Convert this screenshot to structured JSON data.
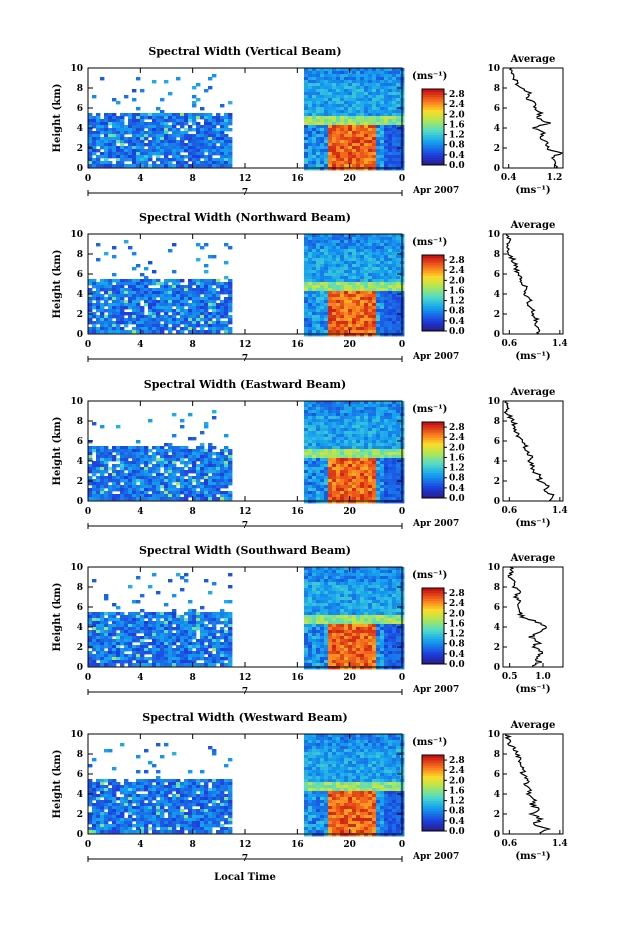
{
  "figure": {
    "xlabel": "Local Time",
    "ylabel": "Height (km)",
    "date_label": "Apr 2007",
    "day_label": "7",
    "colorbar_units": "(ms⁻¹)",
    "avg_title": "Average",
    "avg_units": "(ms⁻¹)"
  },
  "chart_data": [
    {
      "type": "heatmap",
      "title": "Spectral Width (Vertical Beam)",
      "xlabel": "",
      "ylabel": "Height (km)",
      "x_ticks": [
        "0",
        "4",
        "8",
        "12",
        "16",
        "20",
        "0"
      ],
      "y_ticks": [
        "0",
        "2",
        "4",
        "6",
        "8",
        "10"
      ],
      "xlim": [
        0,
        24
      ],
      "ylim": [
        0,
        10
      ],
      "colorbar": {
        "ticks": [
          "0.0",
          "0.4",
          "0.8",
          "1.2",
          "1.6",
          "2.0",
          "2.4",
          "2.8"
        ],
        "range": [
          0,
          3.0
        ]
      },
      "data_gap_hours": [
        11,
        16.5
      ],
      "average_profile": {
        "title": "Average",
        "xlabel": "(ms⁻¹)",
        "x_ticks": [
          "0.4",
          "1.2"
        ],
        "xlim": [
          0.3,
          1.35
        ],
        "y_ticks": [
          "0",
          "2",
          "4",
          "6",
          "8",
          "10"
        ],
        "points": [
          [
            1.2,
            0
          ],
          [
            1.25,
            0.5
          ],
          [
            1.15,
            1
          ],
          [
            1.3,
            1.5
          ],
          [
            1.05,
            2
          ],
          [
            1.1,
            2.5
          ],
          [
            0.95,
            3
          ],
          [
            1.0,
            3.5
          ],
          [
            0.85,
            4
          ],
          [
            1.1,
            4.5
          ],
          [
            0.9,
            5
          ],
          [
            0.95,
            5.5
          ],
          [
            0.85,
            6
          ],
          [
            0.9,
            6.5
          ],
          [
            0.7,
            7
          ],
          [
            0.75,
            7.5
          ],
          [
            0.6,
            8
          ],
          [
            0.55,
            8.5
          ],
          [
            0.5,
            9
          ],
          [
            0.45,
            9.5
          ],
          [
            0.45,
            10
          ]
        ]
      }
    },
    {
      "type": "heatmap",
      "title": "Spectral Width (Northward Beam)",
      "xlabel": "",
      "ylabel": "Height (km)",
      "x_ticks": [
        "0",
        "4",
        "8",
        "12",
        "16",
        "20",
        "0"
      ],
      "y_ticks": [
        "0",
        "2",
        "4",
        "6",
        "8",
        "10"
      ],
      "xlim": [
        0,
        24
      ],
      "ylim": [
        0,
        10
      ],
      "colorbar": {
        "ticks": [
          "0.0",
          "0.4",
          "0.8",
          "1.2",
          "1.6",
          "2.0",
          "2.4",
          "2.8"
        ],
        "range": [
          0,
          3.0
        ]
      },
      "data_gap_hours": [
        11,
        16.5
      ],
      "average_profile": {
        "title": "Average",
        "xlabel": "(ms⁻¹)",
        "x_ticks": [
          "0.6",
          "1.4"
        ],
        "xlim": [
          0.5,
          1.45
        ],
        "y_ticks": [
          "0",
          "2",
          "4",
          "6",
          "8",
          "10"
        ],
        "points": [
          [
            1.05,
            0
          ],
          [
            1.1,
            0.5
          ],
          [
            1.0,
            1
          ],
          [
            1.05,
            1.5
          ],
          [
            0.95,
            2
          ],
          [
            1.0,
            2.5
          ],
          [
            0.9,
            3
          ],
          [
            0.95,
            3.5
          ],
          [
            0.85,
            4
          ],
          [
            0.9,
            4.5
          ],
          [
            0.8,
            5
          ],
          [
            0.8,
            5.5
          ],
          [
            0.75,
            6
          ],
          [
            0.7,
            6.5
          ],
          [
            0.7,
            7
          ],
          [
            0.65,
            7.5
          ],
          [
            0.6,
            8
          ],
          [
            0.6,
            8.5
          ],
          [
            0.55,
            9
          ],
          [
            0.6,
            9.5
          ],
          [
            0.55,
            10
          ]
        ]
      }
    },
    {
      "type": "heatmap",
      "title": "Spectral Width (Eastward Beam)",
      "xlabel": "",
      "ylabel": "Height (km)",
      "x_ticks": [
        "0",
        "4",
        "8",
        "12",
        "16",
        "20",
        "0"
      ],
      "y_ticks": [
        "0",
        "2",
        "4",
        "6",
        "8",
        "10"
      ],
      "xlim": [
        0,
        24
      ],
      "ylim": [
        0,
        10
      ],
      "colorbar": {
        "ticks": [
          "0.0",
          "0.4",
          "0.8",
          "1.2",
          "1.6",
          "2.0",
          "2.4",
          "2.8"
        ],
        "range": [
          0,
          3.0
        ]
      },
      "data_gap_hours": [
        11,
        16.5
      ],
      "average_profile": {
        "title": "Average",
        "xlabel": "(ms⁻¹)",
        "x_ticks": [
          "0.6",
          "1.4"
        ],
        "xlim": [
          0.5,
          1.45
        ],
        "y_ticks": [
          "0",
          "2",
          "4",
          "6",
          "8",
          "10"
        ],
        "points": [
          [
            1.2,
            0
          ],
          [
            1.3,
            0.5
          ],
          [
            1.15,
            1
          ],
          [
            1.25,
            1.5
          ],
          [
            1.05,
            2
          ],
          [
            1.1,
            2.5
          ],
          [
            0.95,
            3
          ],
          [
            1.0,
            3.5
          ],
          [
            0.9,
            4
          ],
          [
            0.95,
            4.5
          ],
          [
            0.85,
            5
          ],
          [
            0.85,
            5.5
          ],
          [
            0.8,
            6
          ],
          [
            0.75,
            6.5
          ],
          [
            0.7,
            7
          ],
          [
            0.7,
            7.5
          ],
          [
            0.65,
            8
          ],
          [
            0.6,
            8.5
          ],
          [
            0.55,
            9
          ],
          [
            0.6,
            9.5
          ],
          [
            0.55,
            10
          ]
        ]
      }
    },
    {
      "type": "heatmap",
      "title": "Spectral Width (Southward Beam)",
      "xlabel": "",
      "ylabel": "Height (km)",
      "x_ticks": [
        "0",
        "4",
        "8",
        "12",
        "16",
        "20",
        "0"
      ],
      "y_ticks": [
        "0",
        "2",
        "4",
        "6",
        "8",
        "10"
      ],
      "xlim": [
        0,
        24
      ],
      "ylim": [
        0,
        10
      ],
      "colorbar": {
        "ticks": [
          "0.0",
          "0.4",
          "0.8",
          "1.2",
          "1.6",
          "2.0",
          "2.4",
          "2.8"
        ],
        "range": [
          0,
          3.0
        ]
      },
      "data_gap_hours": [
        11,
        16.5
      ],
      "average_profile": {
        "title": "Average",
        "xlabel": "(ms⁻¹)",
        "x_ticks": [
          "0.5",
          "1.0"
        ],
        "xlim": [
          0.4,
          1.3
        ],
        "y_ticks": [
          "0",
          "2",
          "4",
          "6",
          "8",
          "10"
        ],
        "points": [
          [
            0.85,
            0
          ],
          [
            0.95,
            0.5
          ],
          [
            0.9,
            1
          ],
          [
            1.0,
            1.5
          ],
          [
            0.85,
            2
          ],
          [
            0.95,
            2.5
          ],
          [
            0.8,
            3
          ],
          [
            0.95,
            3.5
          ],
          [
            1.05,
            4
          ],
          [
            0.9,
            4.5
          ],
          [
            0.7,
            5
          ],
          [
            0.65,
            5.5
          ],
          [
            0.6,
            6
          ],
          [
            0.65,
            6.5
          ],
          [
            0.6,
            7
          ],
          [
            0.65,
            7.5
          ],
          [
            0.55,
            8
          ],
          [
            0.6,
            8.5
          ],
          [
            0.5,
            9
          ],
          [
            0.55,
            9.5
          ],
          [
            0.5,
            10
          ]
        ]
      }
    },
    {
      "type": "heatmap",
      "title": "Spectral Width (Westward Beam)",
      "xlabel": "Local Time",
      "ylabel": "Height (km)",
      "x_ticks": [
        "0",
        "4",
        "8",
        "12",
        "16",
        "20",
        "0"
      ],
      "y_ticks": [
        "0",
        "2",
        "4",
        "6",
        "8",
        "10"
      ],
      "xlim": [
        0,
        24
      ],
      "ylim": [
        0,
        10
      ],
      "colorbar": {
        "ticks": [
          "0.0",
          "0.4",
          "0.8",
          "1.2",
          "1.6",
          "2.0",
          "2.4",
          "2.8"
        ],
        "range": [
          0,
          3.0
        ]
      },
      "data_gap_hours": [
        11,
        16.5
      ],
      "average_profile": {
        "title": "Average",
        "xlabel": "(ms⁻¹)",
        "x_ticks": [
          "0.6",
          "1.4"
        ],
        "xlim": [
          0.5,
          1.45
        ],
        "y_ticks": [
          "0",
          "2",
          "4",
          "6",
          "8",
          "10"
        ],
        "points": [
          [
            1.1,
            0
          ],
          [
            1.2,
            0.5
          ],
          [
            1.0,
            1
          ],
          [
            1.1,
            1.5
          ],
          [
            0.95,
            2
          ],
          [
            1.05,
            2.5
          ],
          [
            0.95,
            3
          ],
          [
            1.0,
            3.5
          ],
          [
            0.9,
            4
          ],
          [
            0.95,
            4.5
          ],
          [
            0.85,
            5
          ],
          [
            0.9,
            5.5
          ],
          [
            0.8,
            6
          ],
          [
            0.85,
            6.5
          ],
          [
            0.75,
            7
          ],
          [
            0.8,
            7.5
          ],
          [
            0.7,
            8
          ],
          [
            0.7,
            8.5
          ],
          [
            0.6,
            9
          ],
          [
            0.6,
            9.5
          ],
          [
            0.55,
            10
          ]
        ]
      }
    }
  ]
}
